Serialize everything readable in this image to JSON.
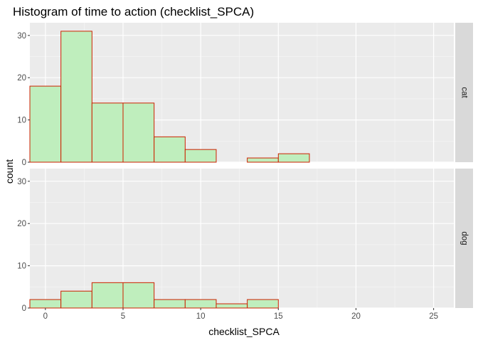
{
  "chart_data": {
    "type": "bar",
    "title": "Histogram of time to action (checklist_SPCA)",
    "xlabel": "checklist_SPCA",
    "ylabel": "count",
    "xlim": [
      -1,
      26.3
    ],
    "ylim": [
      0,
      33
    ],
    "x_ticks": [
      0,
      5,
      10,
      15,
      20,
      25
    ],
    "y_ticks": [
      0,
      10,
      20,
      30
    ],
    "bin_width": 2,
    "bin_edges": [
      -1,
      1,
      3,
      5,
      7,
      9,
      11,
      13,
      15,
      17
    ],
    "fill_color": "#bfeebd",
    "outline_color": "#cc2200",
    "panel_background": "#ebebeb",
    "strip_background": "#d9d9d9",
    "grid": true,
    "facets": [
      {
        "label": "cat",
        "values": [
          18,
          31,
          14,
          14,
          6,
          3,
          0,
          1,
          2
        ]
      },
      {
        "label": "dog",
        "values": [
          2,
          4,
          6,
          6,
          2,
          2,
          1,
          2,
          0
        ]
      }
    ]
  }
}
